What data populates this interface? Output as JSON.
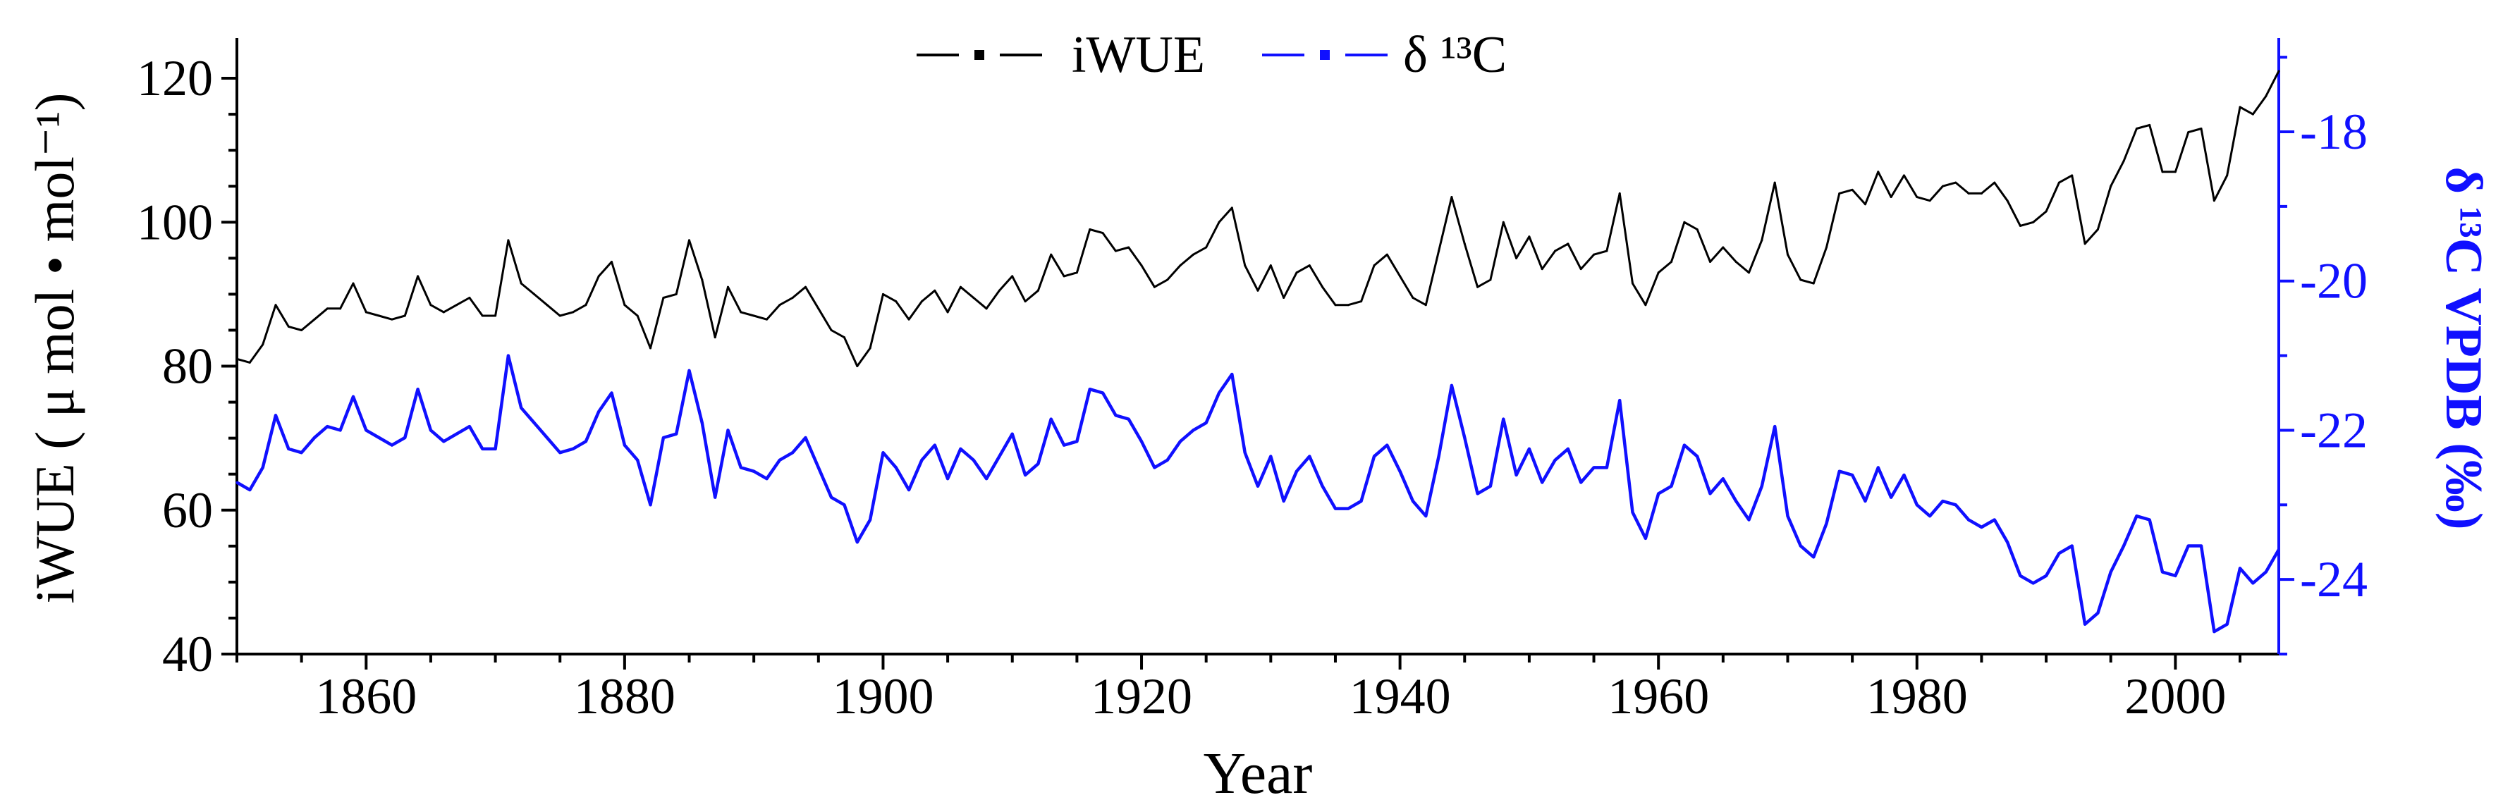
{
  "chart_data": {
    "type": "line",
    "x_label": "Year",
    "y_label_left": "iWUE ( μ mol • mol⁻¹)",
    "y_label_right": "δ ¹³C VPDB (‰)",
    "xlim": [
      1850,
      2008
    ],
    "ylim_left": [
      40,
      125
    ],
    "ylim_right": [
      -25,
      -16.8
    ],
    "x_ticks": [
      1860,
      1880,
      1900,
      1920,
      1940,
      1960,
      1980,
      2000
    ],
    "y_ticks_left": [
      40,
      60,
      80,
      100,
      120
    ],
    "y_ticks_right": [
      -24,
      -22,
      -20,
      -18
    ],
    "legend_position": "top-center",
    "x": [
      1850,
      1851,
      1852,
      1853,
      1854,
      1855,
      1856,
      1857,
      1858,
      1859,
      1860,
      1861,
      1862,
      1863,
      1864,
      1865,
      1866,
      1867,
      1868,
      1869,
      1870,
      1871,
      1872,
      1873,
      1874,
      1875,
      1876,
      1877,
      1878,
      1879,
      1880,
      1881,
      1882,
      1883,
      1884,
      1885,
      1886,
      1887,
      1888,
      1889,
      1890,
      1891,
      1892,
      1893,
      1894,
      1895,
      1896,
      1897,
      1898,
      1899,
      1900,
      1901,
      1902,
      1903,
      1904,
      1905,
      1906,
      1907,
      1908,
      1909,
      1910,
      1911,
      1912,
      1913,
      1914,
      1915,
      1916,
      1917,
      1918,
      1919,
      1920,
      1921,
      1922,
      1923,
      1924,
      1925,
      1926,
      1927,
      1928,
      1929,
      1930,
      1931,
      1932,
      1933,
      1934,
      1935,
      1936,
      1937,
      1938,
      1939,
      1940,
      1941,
      1942,
      1943,
      1944,
      1945,
      1946,
      1947,
      1948,
      1949,
      1950,
      1951,
      1952,
      1953,
      1954,
      1955,
      1956,
      1957,
      1958,
      1959,
      1960,
      1961,
      1962,
      1963,
      1964,
      1965,
      1966,
      1967,
      1968,
      1969,
      1970,
      1971,
      1972,
      1973,
      1974,
      1975,
      1976,
      1977,
      1978,
      1979,
      1980,
      1981,
      1982,
      1983,
      1984,
      1985,
      1986,
      1987,
      1988,
      1989,
      1990,
      1991,
      1992,
      1993,
      1994,
      1995,
      1996,
      1997,
      1998,
      1999,
      2000,
      2001,
      2002,
      2003,
      2004,
      2005,
      2006,
      2007,
      2008
    ],
    "series": [
      {
        "name": "iWUE",
        "axis": "left",
        "color": "#000000",
        "values": [
          81,
          80.5,
          83,
          88.5,
          85.5,
          85,
          86.5,
          88,
          88,
          91.5,
          87.5,
          87,
          86.5,
          87,
          92.5,
          88.5,
          87.5,
          88.5,
          89.5,
          87,
          87,
          97.5,
          91.5,
          90,
          88.5,
          87,
          87.5,
          88.5,
          92.5,
          94.5,
          88.5,
          87,
          82.5,
          89.5,
          90,
          97.5,
          92,
          84,
          91,
          87.5,
          87,
          86.5,
          88.5,
          89.5,
          91,
          88,
          85,
          84,
          80,
          82.5,
          90,
          89,
          86.5,
          89,
          90.5,
          87.5,
          91,
          89.5,
          88,
          90.5,
          92.5,
          89,
          90.5,
          95.5,
          92.5,
          93,
          99,
          98.5,
          96,
          96.5,
          94,
          91,
          92,
          94,
          95.5,
          96.5,
          100,
          102,
          94,
          90.5,
          94,
          89.5,
          93,
          94,
          91,
          88.5,
          88.5,
          89,
          94,
          95.5,
          92.5,
          89.5,
          88.5,
          96,
          103.5,
          97,
          91,
          92,
          100,
          95,
          98,
          93.5,
          96,
          97,
          93.5,
          95.5,
          96,
          104,
          91.5,
          88.5,
          93,
          94.5,
          100,
          99,
          94.5,
          96.5,
          94.5,
          93,
          97.5,
          105.5,
          95.5,
          92,
          91.5,
          96.5,
          104,
          104.5,
          102.5,
          107,
          103.5,
          106.5,
          103.5,
          103,
          105,
          105.5,
          104,
          104,
          105.5,
          103,
          99.5,
          100,
          101.5,
          105.5,
          106.5,
          97,
          99,
          105,
          108.5,
          113,
          113.5,
          107,
          107,
          112.5,
          113,
          103,
          106.5,
          116,
          115,
          117.5,
          121
        ]
      },
      {
        "name": "δ ¹³C",
        "axis": "right",
        "color": "#1010ff",
        "values": [
          -22.7,
          -22.8,
          -22.5,
          -21.8,
          -22.25,
          -22.3,
          -22.1,
          -21.95,
          -22,
          -21.55,
          -22,
          -22.1,
          -22.2,
          -22.1,
          -21.45,
          -22,
          -22.15,
          -22.05,
          -21.95,
          -22.25,
          -22.25,
          -21,
          -21.7,
          -21.9,
          -22.1,
          -22.3,
          -22.25,
          -22.15,
          -21.75,
          -21.5,
          -22.2,
          -22.4,
          -23,
          -22.1,
          -22.05,
          -21.2,
          -21.9,
          -22.9,
          -22,
          -22.5,
          -22.55,
          -22.65,
          -22.4,
          -22.3,
          -22.1,
          -22.5,
          -22.9,
          -23,
          -23.5,
          -23.2,
          -22.3,
          -22.5,
          -22.8,
          -22.4,
          -22.2,
          -22.65,
          -22.25,
          -22.4,
          -22.65,
          -22.35,
          -22.05,
          -22.6,
          -22.45,
          -21.85,
          -22.2,
          -22.15,
          -21.45,
          -21.5,
          -21.8,
          -21.85,
          -22.15,
          -22.5,
          -22.4,
          -22.15,
          -22,
          -21.9,
          -21.5,
          -21.25,
          -22.3,
          -22.75,
          -22.35,
          -22.95,
          -22.55,
          -22.35,
          -22.75,
          -23.05,
          -23.05,
          -22.95,
          -22.35,
          -22.2,
          -22.55,
          -22.95,
          -23.15,
          -22.35,
          -21.4,
          -22.1,
          -22.85,
          -22.75,
          -21.85,
          -22.6,
          -22.25,
          -22.7,
          -22.4,
          -22.25,
          -22.7,
          -22.5,
          -22.5,
          -21.6,
          -23.1,
          -23.45,
          -22.85,
          -22.75,
          -22.2,
          -22.35,
          -22.85,
          -22.65,
          -22.95,
          -23.2,
          -22.75,
          -21.95,
          -23.15,
          -23.55,
          -23.7,
          -23.25,
          -22.55,
          -22.6,
          -22.95,
          -22.5,
          -22.9,
          -22.6,
          -23,
          -23.15,
          -22.95,
          -23,
          -23.2,
          -23.3,
          -23.2,
          -23.5,
          -23.95,
          -24.05,
          -23.95,
          -23.65,
          -23.55,
          -24.6,
          -24.45,
          -23.9,
          -23.55,
          -23.15,
          -23.2,
          -23.9,
          -23.95,
          -23.55,
          -23.55,
          -24.7,
          -24.6,
          -23.85,
          -24.05,
          -23.9,
          -23.6
        ]
      }
    ]
  }
}
